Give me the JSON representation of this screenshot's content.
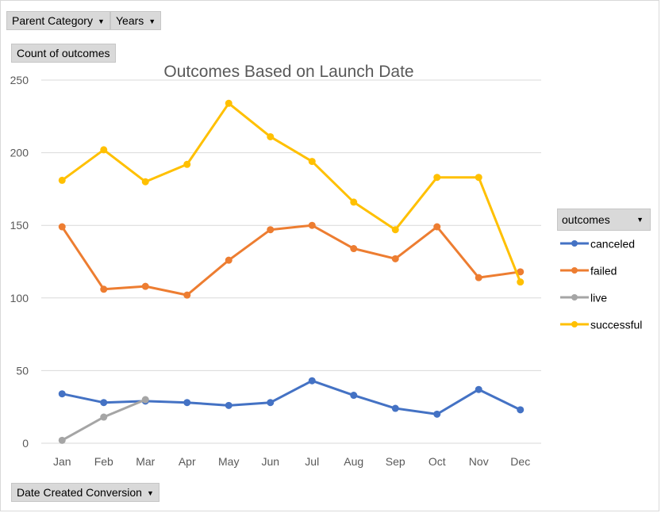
{
  "filters": {
    "parent_category": "Parent Category",
    "years": "Years",
    "values_field": "Count of outcomes",
    "axis_field": "Date Created Conversion",
    "legend_field": "outcomes"
  },
  "chart_data": {
    "type": "line",
    "title": "Outcomes Based on Launch Date",
    "xlabel": "",
    "ylabel": "",
    "categories": [
      "Jan",
      "Feb",
      "Mar",
      "Apr",
      "May",
      "Jun",
      "Jul",
      "Aug",
      "Sep",
      "Oct",
      "Nov",
      "Dec"
    ],
    "ylim": [
      0,
      250
    ],
    "yticks": [
      0,
      50,
      100,
      150,
      200,
      250
    ],
    "grid": true,
    "legend_position": "right",
    "series": [
      {
        "name": "canceled",
        "color": "#4472c4",
        "values": [
          34,
          28,
          29,
          28,
          26,
          28,
          43,
          33,
          24,
          20,
          37,
          23
        ]
      },
      {
        "name": "failed",
        "color": "#ed7d31",
        "values": [
          149,
          106,
          108,
          102,
          126,
          147,
          150,
          134,
          127,
          149,
          114,
          118
        ]
      },
      {
        "name": "live",
        "color": "#a5a5a5",
        "values": [
          2,
          18,
          30,
          null,
          null,
          null,
          null,
          null,
          null,
          null,
          null,
          null
        ]
      },
      {
        "name": "successful",
        "color": "#ffc000",
        "values": [
          181,
          202,
          180,
          192,
          234,
          211,
          194,
          166,
          147,
          183,
          183,
          111
        ]
      }
    ]
  }
}
